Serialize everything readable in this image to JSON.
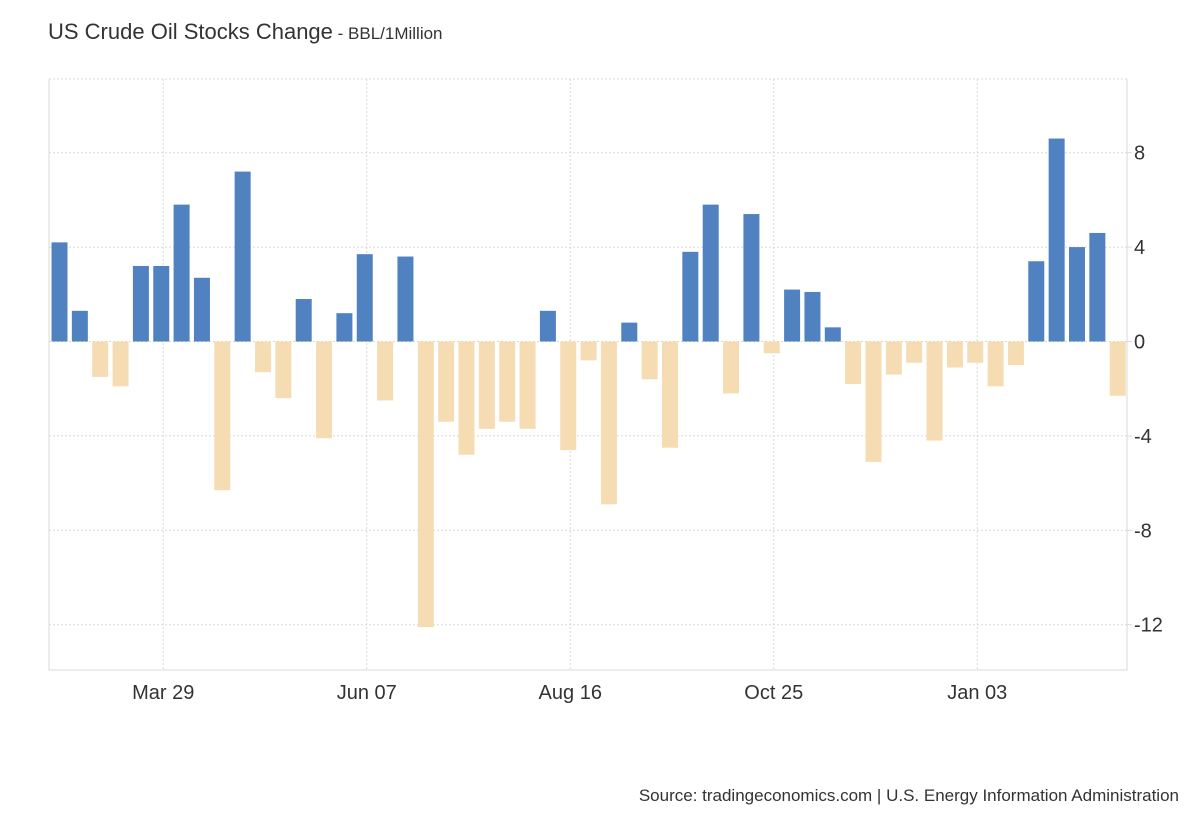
{
  "header": {
    "title": "US Crude Oil Stocks Change",
    "unit": " - BBL/1Million"
  },
  "footer": {
    "source": "Source: tradingeconomics.com | U.S. Energy Information Administration"
  },
  "colors": {
    "positive": "#5081c0",
    "negative": "#f5dcb2",
    "grid": "#d8d8d8",
    "axis_text": "#333333"
  },
  "chart_data": {
    "type": "bar",
    "title": "US Crude Oil Stocks Change",
    "ylabel": "BBL/1Million",
    "xlabel": "",
    "ylim": [
      -14,
      11
    ],
    "yticks": [
      8,
      4,
      0,
      -4,
      -8,
      -12
    ],
    "ytick_labels": [
      "8",
      "4",
      "0",
      "-4",
      "-8",
      "-12"
    ],
    "xtick_labels": [
      "Mar 29",
      "Jun 07",
      "Aug 16",
      "Oct 25",
      "Jan 03"
    ],
    "xtick_indices": [
      5,
      15,
      25,
      35,
      45
    ],
    "grid": true,
    "legend": "none",
    "values": [
      4.2,
      1.3,
      -1.5,
      -1.9,
      3.2,
      3.2,
      5.8,
      2.7,
      -6.3,
      7.2,
      -1.3,
      -2.4,
      1.8,
      -4.1,
      1.2,
      3.7,
      -2.5,
      3.6,
      -12.1,
      -3.4,
      -4.8,
      -3.7,
      -3.4,
      -3.7,
      1.3,
      -4.6,
      -0.8,
      -6.9,
      0.8,
      -1.6,
      -4.5,
      3.8,
      5.8,
      -2.2,
      5.4,
      -0.5,
      2.2,
      2.1,
      0.6,
      -1.8,
      -5.1,
      -1.4,
      -0.9,
      -4.2,
      -1.1,
      -0.9,
      -1.9,
      -1.0,
      3.4,
      8.6,
      4.0,
      4.6,
      -2.3
    ]
  }
}
